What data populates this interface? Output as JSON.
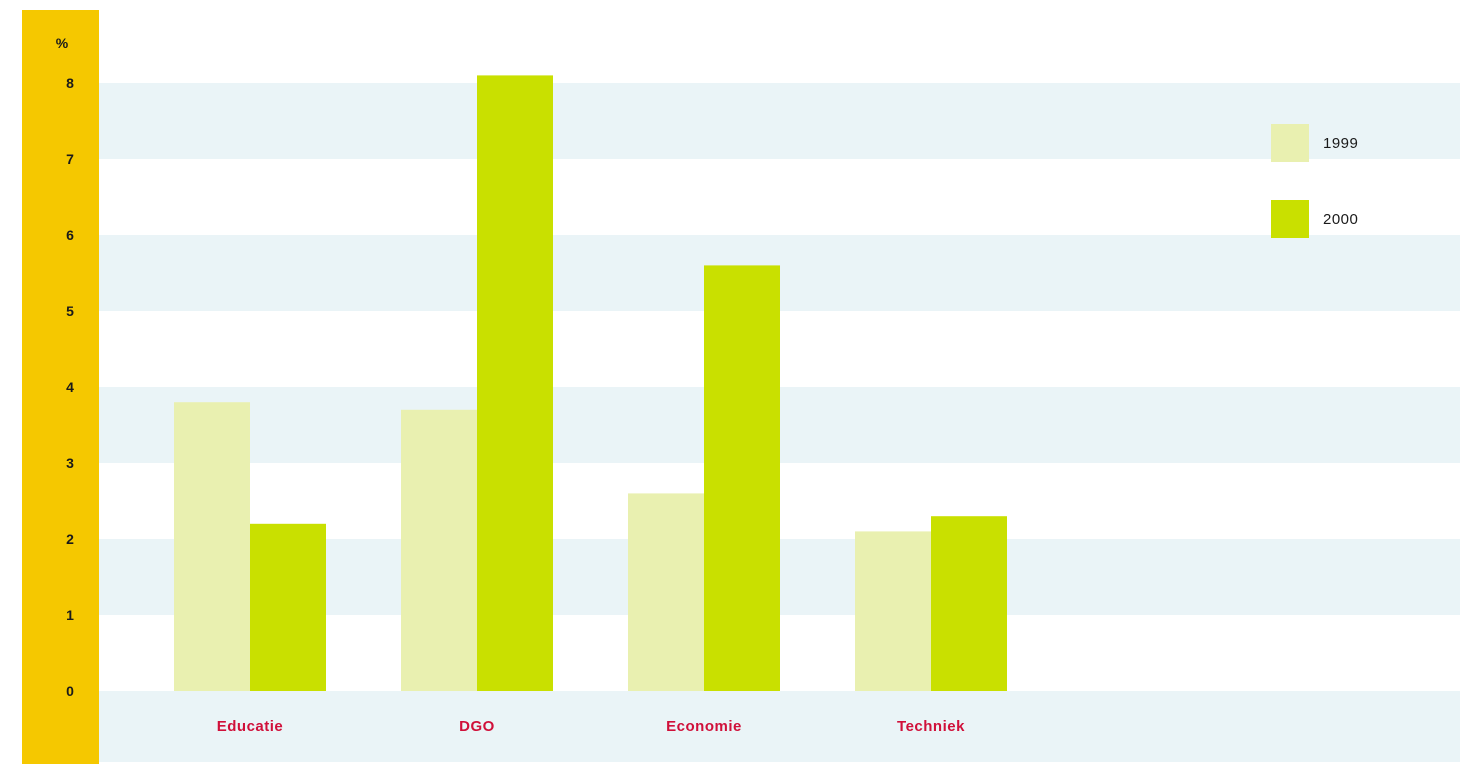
{
  "chart_data": {
    "type": "bar",
    "ylabel": "%",
    "ylim": [
      0,
      8
    ],
    "yticks": [
      0,
      1,
      2,
      3,
      4,
      5,
      6,
      7,
      8
    ],
    "categories": [
      "Educatie",
      "DGO",
      "Economie",
      "Techniek"
    ],
    "series": [
      {
        "name": "1999",
        "color": "#e9f0b0",
        "values": [
          3.8,
          3.7,
          2.6,
          2.1
        ]
      },
      {
        "name": "2000",
        "color": "#c9e000",
        "values": [
          2.2,
          8.1,
          5.6,
          2.3
        ]
      }
    ],
    "grid": "alternating horizontal bands",
    "legend_position": "top-right",
    "axis_panel_color": "#f5c800",
    "band_color": "#eaf4f7",
    "category_label_color": "#d0103a"
  }
}
